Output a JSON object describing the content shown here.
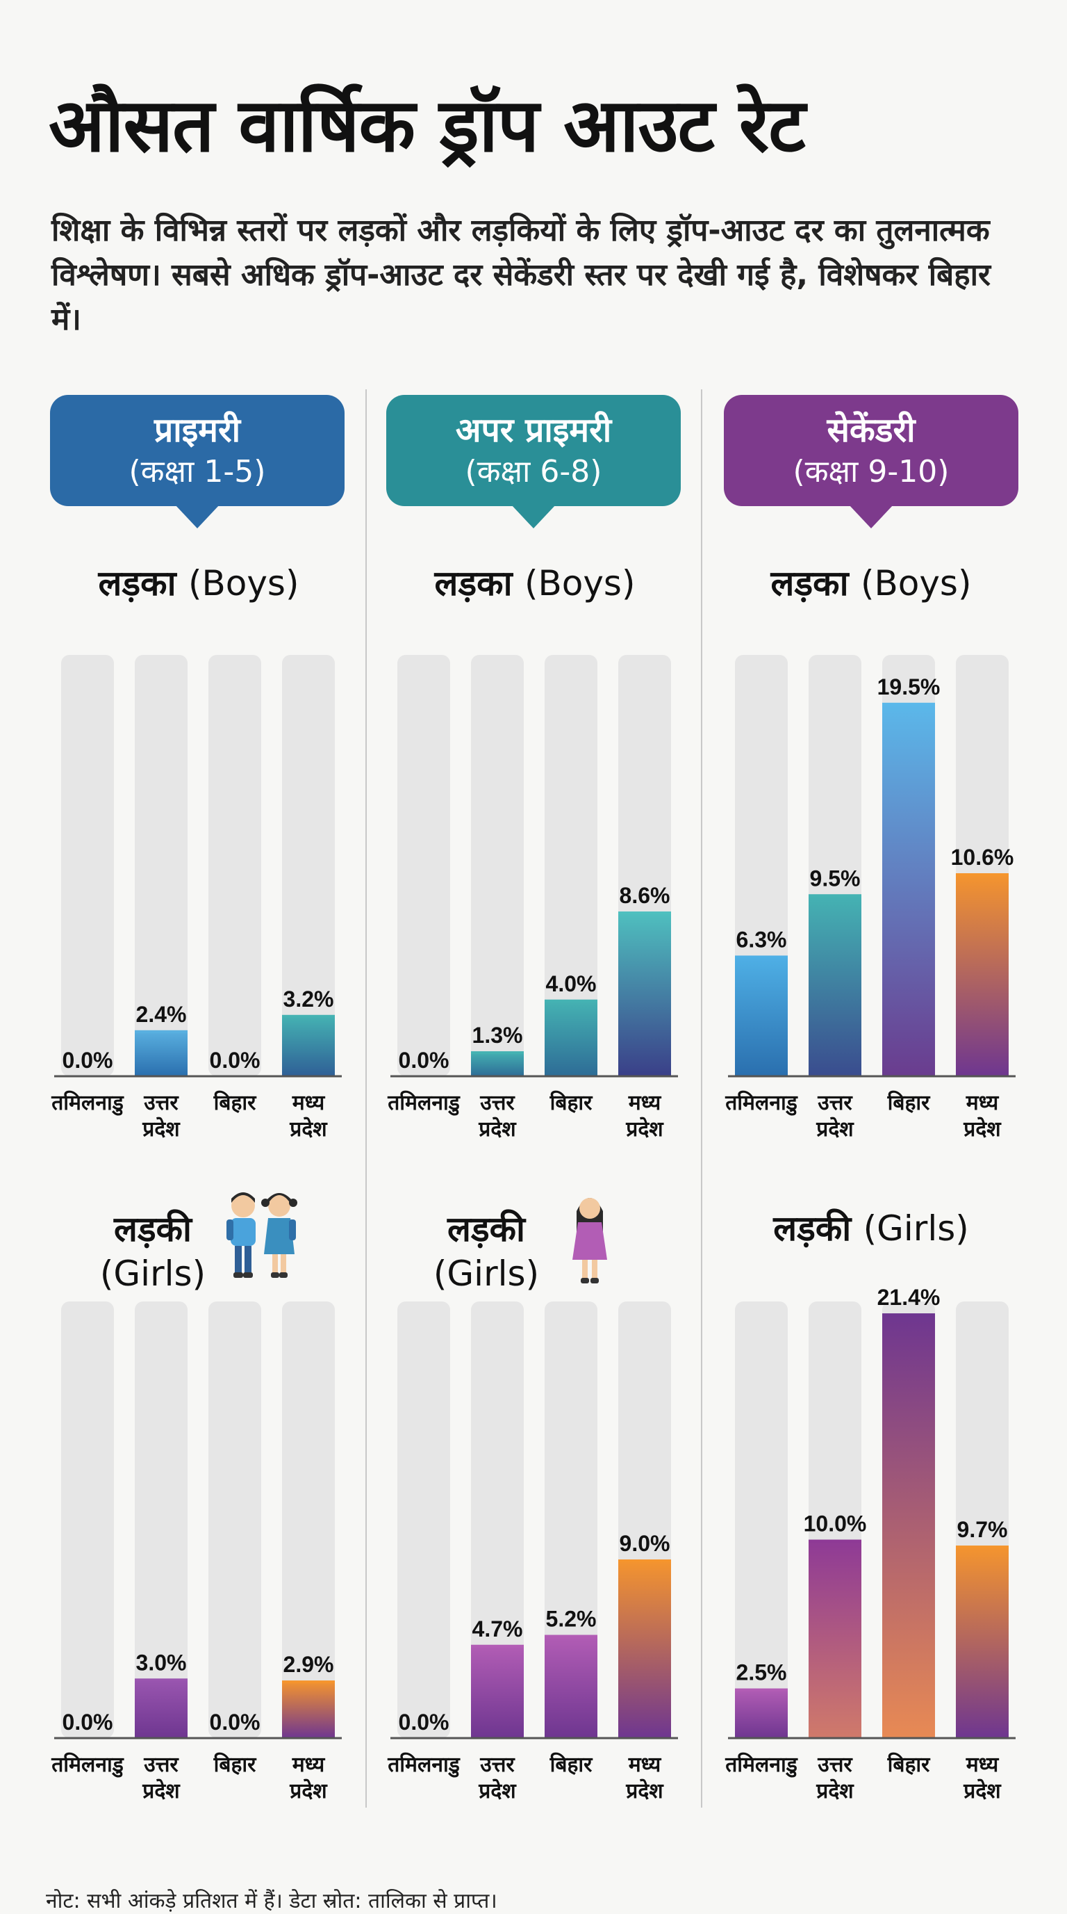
{
  "title": "औसत वार्षिक ड्रॉप आउट रेट",
  "subtitle": "शिक्षा के विभिन्न स्तरों पर लड़कों और लड़कियों के लिए ड्रॉप-आउट दर का तुलनात्मक विश्लेषण। सबसे अधिक ड्रॉप-आउट दर सेकेंडरी स्तर पर देखी गई है, विशेषकर बिहार में।",
  "levels": [
    {
      "title": "प्राइमरी",
      "sub": "(कक्षा 1-5)",
      "color": "#2b6aa6"
    },
    {
      "title": "अपर प्राइमरी",
      "sub": "(कक्षा 6-8)",
      "color": "#2a8f97"
    },
    {
      "title": "सेकेंडरी",
      "sub": "(कक्षा 9-10)",
      "color": "#7d3a8c"
    }
  ],
  "gender_labels": {
    "boys_hi": "लड़का",
    "boys_en": "(Boys)",
    "girls_hi": "लड़की",
    "girls_en": "(Girls)"
  },
  "footnote": "नोट: सभी आंकड़े प्रतिशत में हैं। डेटा स्रोत: तालिका से प्राप्त।",
  "chart_data": [
    {
      "type": "bar",
      "title": "प्राइमरी (कक्षा 1-5) — लड़का (Boys)",
      "categories": [
        "तमिलनाडु",
        "उत्तर प्रदेश",
        "बिहार",
        "मध्य प्रदेश"
      ],
      "values": [
        0.0,
        2.4,
        0.0,
        3.2
      ],
      "labels": [
        "0.0%",
        "2.4%",
        "0.0%",
        "3.2%"
      ],
      "ylim": [
        0,
        22
      ],
      "ylabel": "%",
      "colors": [
        [
          "#5ab0e0",
          "#2a6fae"
        ],
        [
          "#5ab0e0",
          "#2a6fae"
        ],
        [
          "#5ab0e0",
          "#2a6fae"
        ],
        [
          "#45b3b3",
          "#2f5f96"
        ]
      ]
    },
    {
      "type": "bar",
      "title": "अपर प्राइमरी (कक्षा 6-8) — लड़का (Boys)",
      "categories": [
        "तमिलनाडु",
        "उत्तर प्रदेश",
        "बिहार",
        "मध्य प्रदेश"
      ],
      "values": [
        0.0,
        1.3,
        4.0,
        8.6
      ],
      "labels": [
        "0.0%",
        "1.3%",
        "4.0%",
        "8.6%"
      ],
      "ylim": [
        0,
        22
      ],
      "ylabel": "%",
      "colors": [
        [
          "#45b3b3",
          "#2e6c96"
        ],
        [
          "#45b3b3",
          "#2e6c96"
        ],
        [
          "#45b3b3",
          "#2e6c96"
        ],
        [
          "#4fc0bf",
          "#3a3f88"
        ]
      ]
    },
    {
      "type": "bar",
      "title": "सेकेंडरी (कक्षा 9-10) — लड़का (Boys)",
      "categories": [
        "तमिलनाडु",
        "उत्तर प्रदेश",
        "बिहार",
        "मध्य प्रदेश"
      ],
      "values": [
        6.3,
        9.5,
        19.5,
        10.6
      ],
      "labels": [
        "6.3%",
        "9.5%",
        "19.5%",
        "10.6%"
      ],
      "ylim": [
        0,
        22
      ],
      "ylabel": "%",
      "colors": [
        [
          "#4fb0e6",
          "#2a6fae"
        ],
        [
          "#45b3b3",
          "#3a4c8e"
        ],
        [
          "#5bb8ea",
          "#6a3c8e"
        ],
        [
          "#f5952e",
          "#6e3690"
        ]
      ]
    },
    {
      "type": "bar",
      "title": "प्राइमरी (कक्षा 1-5) — लड़की (Girls)",
      "categories": [
        "तमिलनाडु",
        "उत्तर प्रदेश",
        "बिहार",
        "मध्य प्रदेश"
      ],
      "values": [
        0.0,
        3.0,
        0.0,
        2.9
      ],
      "labels": [
        "0.0%",
        "3.0%",
        "0.0%",
        "2.9%"
      ],
      "ylim": [
        0,
        22
      ],
      "ylabel": "%",
      "colors": [
        [
          "#9a56b0",
          "#6e3690"
        ],
        [
          "#9a56b0",
          "#6e3690"
        ],
        [
          "#9a56b0",
          "#6e3690"
        ],
        [
          "#f5952e",
          "#6e3690"
        ]
      ]
    },
    {
      "type": "bar",
      "title": "अपर प्राइमरी (कक्षा 6-8) — लड़की (Girls)",
      "categories": [
        "तमिलनाडु",
        "उत्तर प्रदेश",
        "बिहार",
        "मध्य प्रदेश"
      ],
      "values": [
        0.0,
        4.7,
        5.2,
        9.0
      ],
      "labels": [
        "0.0%",
        "4.7%",
        "5.2%",
        "9.0%"
      ],
      "ylim": [
        0,
        22
      ],
      "ylabel": "%",
      "colors": [
        [
          "#b25db5",
          "#6e3690"
        ],
        [
          "#b25db5",
          "#6e3690"
        ],
        [
          "#b25db5",
          "#6e3690"
        ],
        [
          "#f5952e",
          "#6e3690"
        ]
      ]
    },
    {
      "type": "bar",
      "title": "सेकेंडरी (कक्षा 9-10) — लड़की (Girls)",
      "categories": [
        "तमिलनाडु",
        "उत्तर प्रदेश",
        "बिहार",
        "मध्य प्रदेश"
      ],
      "values": [
        2.5,
        10.0,
        21.4,
        9.7
      ],
      "labels": [
        "2.5%",
        "10.0%",
        "21.4%",
        "9.7%"
      ],
      "ylim": [
        0,
        22
      ],
      "ylabel": "%",
      "colors": [
        [
          "#b25db5",
          "#6e3690"
        ],
        [
          "#8e3a96",
          "#d07a6a"
        ],
        [
          "#6e3690",
          "#e88a54"
        ],
        [
          "#f5952e",
          "#6e3690"
        ]
      ]
    }
  ]
}
